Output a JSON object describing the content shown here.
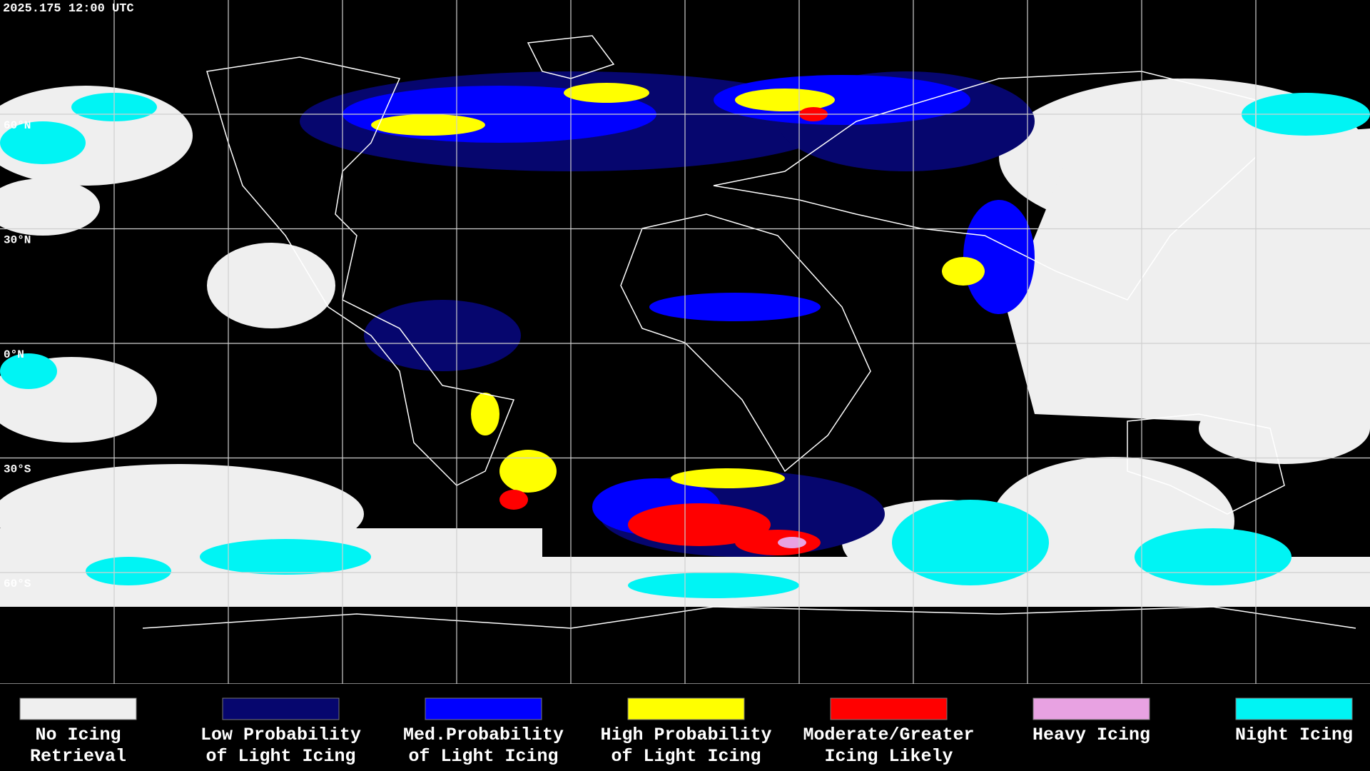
{
  "header": {
    "timestamp": "2025.175 12:00 UTC"
  },
  "map": {
    "latitude_labels": [
      "60°N",
      "30°N",
      "0°N",
      "30°S",
      "60°S"
    ]
  },
  "legend": {
    "items": [
      {
        "lines": [
          "No Icing",
          "Retrieval"
        ],
        "color": "#efefef"
      },
      {
        "lines": [
          "Low Probability",
          "of Light Icing"
        ],
        "color": "#06066e"
      },
      {
        "lines": [
          "Med.Probability",
          "of Light Icing"
        ],
        "color": "#0000ff"
      },
      {
        "lines": [
          "High Probability",
          "of Light Icing"
        ],
        "color": "#ffff00"
      },
      {
        "lines": [
          "Moderate/Greater",
          "Icing Likely"
        ],
        "color": "#ff0000"
      },
      {
        "lines": [
          "Heavy Icing"
        ],
        "color": "#e8a2e2"
      },
      {
        "lines": [
          "Night Icing"
        ],
        "color": "#00f4f4"
      }
    ]
  }
}
